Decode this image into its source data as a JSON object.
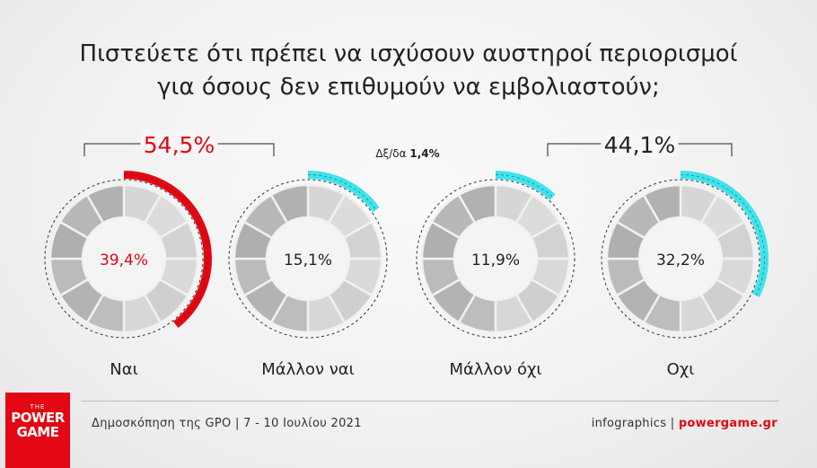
{
  "title": {
    "line1": "Πιστεύετε ότι πρέπει να ισχύσουν αυστηροί περιορισμοί",
    "line2": "για όσους δεν επιθυμούν να εμβολιαστούν;"
  },
  "chart_data": {
    "type": "pie",
    "title": "Πιστεύετε ότι πρέπει να ισχύσουν αυστηροί περιορισμοί για όσους δεν επιθυμούν να εμβολιαστούν;",
    "categories": [
      "Ναι",
      "Μάλλον ναι",
      "Μάλλον όχι",
      "Οχι"
    ],
    "values": [
      39.4,
      15.1,
      11.9,
      32.2
    ],
    "value_labels": [
      "39,4%",
      "15,1%",
      "11,9%",
      "32,2%"
    ],
    "colors": [
      "#e30613",
      "#3de4ec",
      "#3de4ec",
      "#3de4ec"
    ],
    "label_colors": [
      "#e30613",
      "#222222",
      "#222222",
      "#222222"
    ],
    "groups": [
      {
        "label": "54,5%",
        "members": [
          0,
          1
        ],
        "color": "#e30613"
      },
      {
        "label": "44,1%",
        "members": [
          2,
          3
        ],
        "color": "#222222"
      }
    ],
    "dont_know": {
      "label": "Δξ/δα",
      "value": "1,4%"
    }
  },
  "footer": {
    "source": "Δημοσκόπηση της GPO | 7 - 10 Ιουλίου 2021",
    "credit": "infographics |",
    "site": "powergame.gr"
  },
  "logo": {
    "small": "THE",
    "line1": "POWER",
    "line2": "GAME"
  }
}
